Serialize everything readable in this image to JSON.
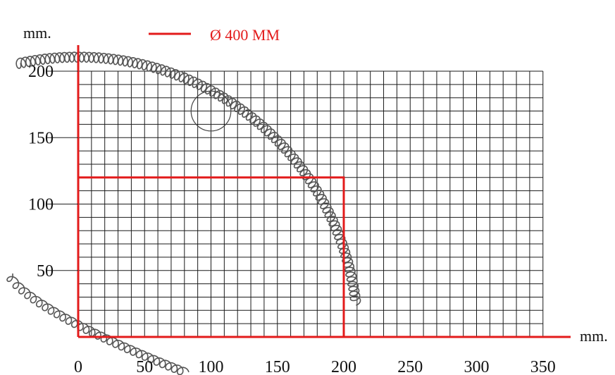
{
  "units_y": "mm.",
  "units_x": "mm.",
  "legend": {
    "label": "Ø 400 MM",
    "color": "#e31b1b"
  },
  "x_ticks": [
    "0",
    "50",
    "100",
    "150",
    "200",
    "250",
    "300",
    "350"
  ],
  "y_ticks": [
    "50",
    "100",
    "150",
    "200"
  ],
  "grid": {
    "x_max": 350,
    "y_max": 200,
    "step": 10
  },
  "axis_ranges": {
    "x": [
      0,
      350
    ],
    "y": [
      0,
      200
    ]
  },
  "highlight_rect": {
    "x_from": 0,
    "x_to": 200,
    "y_from": 0,
    "y_to": 120,
    "color": "#e31b1b"
  },
  "marker_circle": {
    "cx": 100,
    "cy": 170,
    "r": 15
  },
  "colors": {
    "grid": "#1a1a1a",
    "accent": "#e31b1b",
    "cable": "#555555"
  }
}
